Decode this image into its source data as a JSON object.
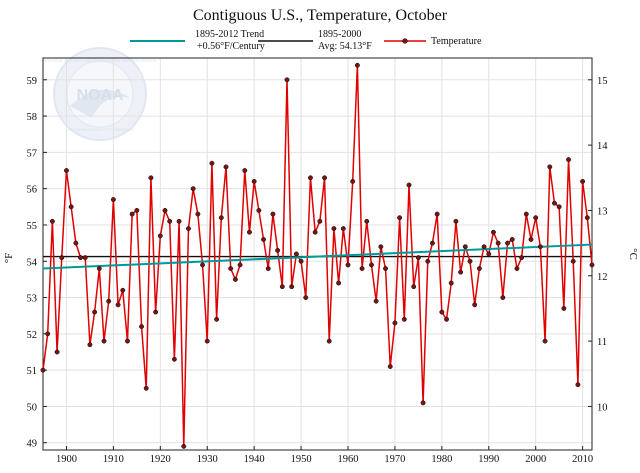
{
  "chart_data": {
    "type": "line",
    "title": "Contiguous U.S., Temperature, October",
    "ylabel": "°F",
    "y2label": "°C",
    "xlabel": "",
    "xlim": [
      1895,
      2012
    ],
    "ylim": [
      48.8,
      59.6
    ],
    "x_ticks": [
      "1900",
      "1910",
      "1920",
      "1930",
      "1940",
      "1950",
      "1960",
      "1970",
      "1980",
      "1990",
      "2000",
      "2010"
    ],
    "y_ticks": [
      "49",
      "50",
      "51",
      "52",
      "53",
      "54",
      "55",
      "56",
      "57",
      "58",
      "59"
    ],
    "y2_ticks": [
      "10",
      "11",
      "12",
      "13",
      "14",
      "15"
    ],
    "grid": true,
    "legend": {
      "trend_label_line1": "1895-2012 Trend",
      "trend_label_line2": "+0.56°F/Century",
      "avg_label_line1": "1895-2000",
      "avg_label_line2": "Avg: 54.13°F",
      "temp_label": "Temperature"
    },
    "colors": {
      "temperature": "#e00000",
      "trend": "#009999",
      "average": "#111111",
      "marker_fill": "#6b1a1a",
      "grid": "#e2e2e2",
      "watermark": "#c8d4e6"
    },
    "watermark_text": "NOAA",
    "watermark_ring_top": "NATIONAL OCEANIC AND ATMOSPHERIC ADMINISTRATION",
    "watermark_ring_bottom": "U.S. DEPARTMENT OF COMMERCE",
    "average": 54.13,
    "trend": {
      "start_year": 1895,
      "start_value": 53.8,
      "end_year": 2012,
      "end_value": 54.46
    },
    "series": [
      {
        "name": "Temperature",
        "x": [
          1895,
          1896,
          1897,
          1898,
          1899,
          1900,
          1901,
          1902,
          1903,
          1904,
          1905,
          1906,
          1907,
          1908,
          1909,
          1910,
          1911,
          1912,
          1913,
          1914,
          1915,
          1916,
          1917,
          1918,
          1919,
          1920,
          1921,
          1922,
          1923,
          1924,
          1925,
          1926,
          1927,
          1928,
          1929,
          1930,
          1931,
          1932,
          1933,
          1934,
          1935,
          1936,
          1937,
          1938,
          1939,
          1940,
          1941,
          1942,
          1943,
          1944,
          1945,
          1946,
          1947,
          1948,
          1949,
          1950,
          1951,
          1952,
          1953,
          1954,
          1955,
          1956,
          1957,
          1958,
          1959,
          1960,
          1961,
          1962,
          1963,
          1964,
          1965,
          1966,
          1967,
          1968,
          1969,
          1970,
          1971,
          1972,
          1973,
          1974,
          1975,
          1976,
          1977,
          1978,
          1979,
          1980,
          1981,
          1982,
          1983,
          1984,
          1985,
          1986,
          1987,
          1988,
          1989,
          1990,
          1991,
          1992,
          1993,
          1994,
          1995,
          1996,
          1997,
          1998,
          1999,
          2000,
          2001,
          2002,
          2003,
          2004,
          2005,
          2006,
          2007,
          2008,
          2009,
          2010,
          2011,
          2012
        ],
        "values": [
          51.0,
          52.0,
          55.1,
          51.5,
          54.1,
          56.5,
          55.5,
          54.5,
          54.1,
          54.1,
          51.7,
          52.6,
          53.8,
          51.8,
          52.9,
          55.7,
          52.8,
          53.2,
          51.8,
          55.3,
          55.4,
          52.2,
          50.5,
          56.3,
          52.6,
          54.7,
          55.4,
          55.1,
          51.3,
          55.1,
          48.9,
          54.9,
          56.0,
          55.3,
          53.9,
          51.8,
          56.7,
          52.4,
          55.2,
          56.6,
          53.8,
          53.5,
          53.9,
          56.5,
          54.8,
          56.2,
          55.4,
          54.6,
          53.8,
          55.3,
          54.3,
          53.3,
          59.0,
          53.3,
          54.2,
          54.0,
          53.0,
          56.3,
          54.8,
          55.1,
          56.3,
          51.8,
          54.9,
          53.4,
          54.9,
          53.9,
          56.2,
          59.4,
          53.8,
          55.1,
          53.9,
          52.9,
          54.4,
          53.8,
          51.1,
          52.3,
          55.2,
          52.4,
          56.1,
          53.3,
          54.1,
          50.1,
          54.0,
          54.5,
          55.3,
          52.6,
          52.4,
          53.4,
          55.1,
          53.7,
          54.4,
          54.0,
          52.8,
          53.8,
          54.4,
          54.2,
          54.8,
          54.5,
          53.0,
          54.5,
          54.6,
          53.8,
          54.1,
          55.3,
          54.6,
          55.2,
          54.4,
          51.8,
          56.6,
          55.6,
          55.5,
          52.7,
          56.8,
          54.0,
          50.6,
          56.2,
          55.2,
          53.9
        ]
      }
    ]
  }
}
